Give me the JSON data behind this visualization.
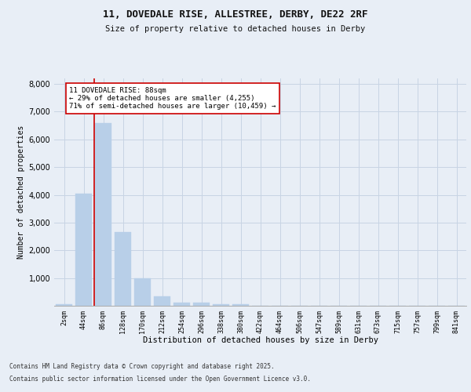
{
  "title_line1": "11, DOVEDALE RISE, ALLESTREE, DERBY, DE22 2RF",
  "title_line2": "Size of property relative to detached houses in Derby",
  "xlabel": "Distribution of detached houses by size in Derby",
  "ylabel": "Number of detached properties",
  "categories": [
    "2sqm",
    "44sqm",
    "86sqm",
    "128sqm",
    "170sqm",
    "212sqm",
    "254sqm",
    "296sqm",
    "338sqm",
    "380sqm",
    "422sqm",
    "464sqm",
    "506sqm",
    "547sqm",
    "589sqm",
    "631sqm",
    "673sqm",
    "715sqm",
    "757sqm",
    "799sqm",
    "841sqm"
  ],
  "values": [
    50,
    4050,
    6600,
    2650,
    1000,
    350,
    120,
    100,
    60,
    50,
    0,
    0,
    0,
    0,
    0,
    0,
    0,
    0,
    0,
    0,
    0
  ],
  "bar_color": "#b8cfe8",
  "bar_edge_color": "#b8cfe8",
  "grid_color": "#c8d4e4",
  "background_color": "#e8eef6",
  "fig_background": "#e8eef6",
  "vline_color": "#cc0000",
  "vline_index": 1.55,
  "annotation_box_text": "11 DOVEDALE RISE: 88sqm\n← 29% of detached houses are smaller (4,255)\n71% of semi-detached houses are larger (10,459) →",
  "annotation_box_color": "#cc0000",
  "ylim": [
    0,
    8200
  ],
  "yticks": [
    0,
    1000,
    2000,
    3000,
    4000,
    5000,
    6000,
    7000,
    8000
  ],
  "footer_line1": "Contains HM Land Registry data © Crown copyright and database right 2025.",
  "footer_line2": "Contains public sector information licensed under the Open Government Licence v3.0."
}
